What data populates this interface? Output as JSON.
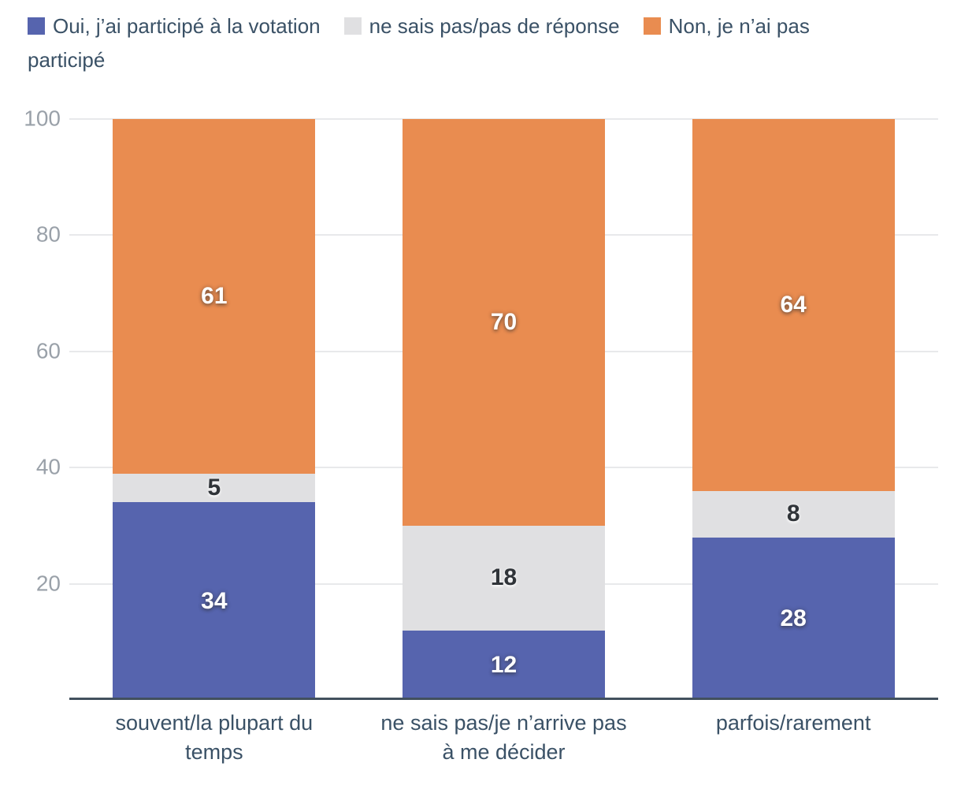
{
  "colors": {
    "background": "#ffffff",
    "grid_line": "#e8e9eb",
    "axis_line": "#42505e",
    "y_tick_label": "#9aa1a9",
    "x_tick_label": "#3a5166",
    "legend_text": "#3a5166",
    "series_blue": "#5664ae",
    "series_gray": "#e0e0e2",
    "series_orange": "#e98c50",
    "label_light": "#ffffff",
    "label_dark": "#303439"
  },
  "chart_data": {
    "type": "bar",
    "stacked": true,
    "orientation": "vertical",
    "title": "",
    "xlabel": "",
    "ylabel": "",
    "categories": [
      "souvent/la plupart du temps",
      "ne sais pas/je n’arrive pas à me décider",
      "parfois/rarement"
    ],
    "series": [
      {
        "name": "Oui, j’ai participé à la votation",
        "color": "#5664ae",
        "label_style": "light",
        "values": [
          34,
          12,
          28
        ]
      },
      {
        "name": "ne sais pas/pas de réponse",
        "color": "#e0e0e2",
        "label_style": "dark",
        "values": [
          5,
          18,
          8
        ]
      },
      {
        "name": "Non, je n’ai pas participé",
        "color": "#e98c50",
        "label_style": "light",
        "values": [
          61,
          70,
          64
        ]
      }
    ],
    "ylim": [
      0,
      100
    ],
    "yticks": [
      20,
      40,
      60,
      80,
      100
    ],
    "grid": true,
    "legend_position": "top"
  }
}
